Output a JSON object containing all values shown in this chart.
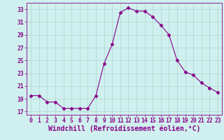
{
  "x": [
    0,
    1,
    2,
    3,
    4,
    5,
    6,
    7,
    8,
    9,
    10,
    11,
    12,
    13,
    14,
    15,
    16,
    17,
    18,
    19,
    20,
    21,
    22,
    23
  ],
  "y": [
    19.5,
    19.5,
    18.5,
    18.5,
    17.5,
    17.5,
    17.5,
    17.5,
    19.5,
    24.5,
    27.5,
    32.5,
    33.2,
    32.7,
    32.7,
    31.8,
    30.5,
    29.0,
    25.0,
    23.2,
    22.7,
    21.5,
    20.7,
    20.0
  ],
  "line_color": "#880088",
  "marker": "D",
  "marker_size": 2.5,
  "bg_color": "#cff0ee",
  "grid_color": "#aacfc8",
  "xlabel": "Windchill (Refroidissement éolien,°C)",
  "xlabel_fontsize": 7,
  "ylim": [
    16.5,
    34
  ],
  "yticks": [
    17,
    19,
    21,
    23,
    25,
    27,
    29,
    31,
    33
  ],
  "xlim": [
    -0.5,
    23.5
  ],
  "xticks": [
    0,
    1,
    2,
    3,
    4,
    5,
    6,
    7,
    8,
    9,
    10,
    11,
    12,
    13,
    14,
    15,
    16,
    17,
    18,
    19,
    20,
    21,
    22,
    23
  ],
  "tick_fontsize": 5.8,
  "tick_color": "#880088",
  "axis_color": "#880088",
  "linewidth": 0.8
}
